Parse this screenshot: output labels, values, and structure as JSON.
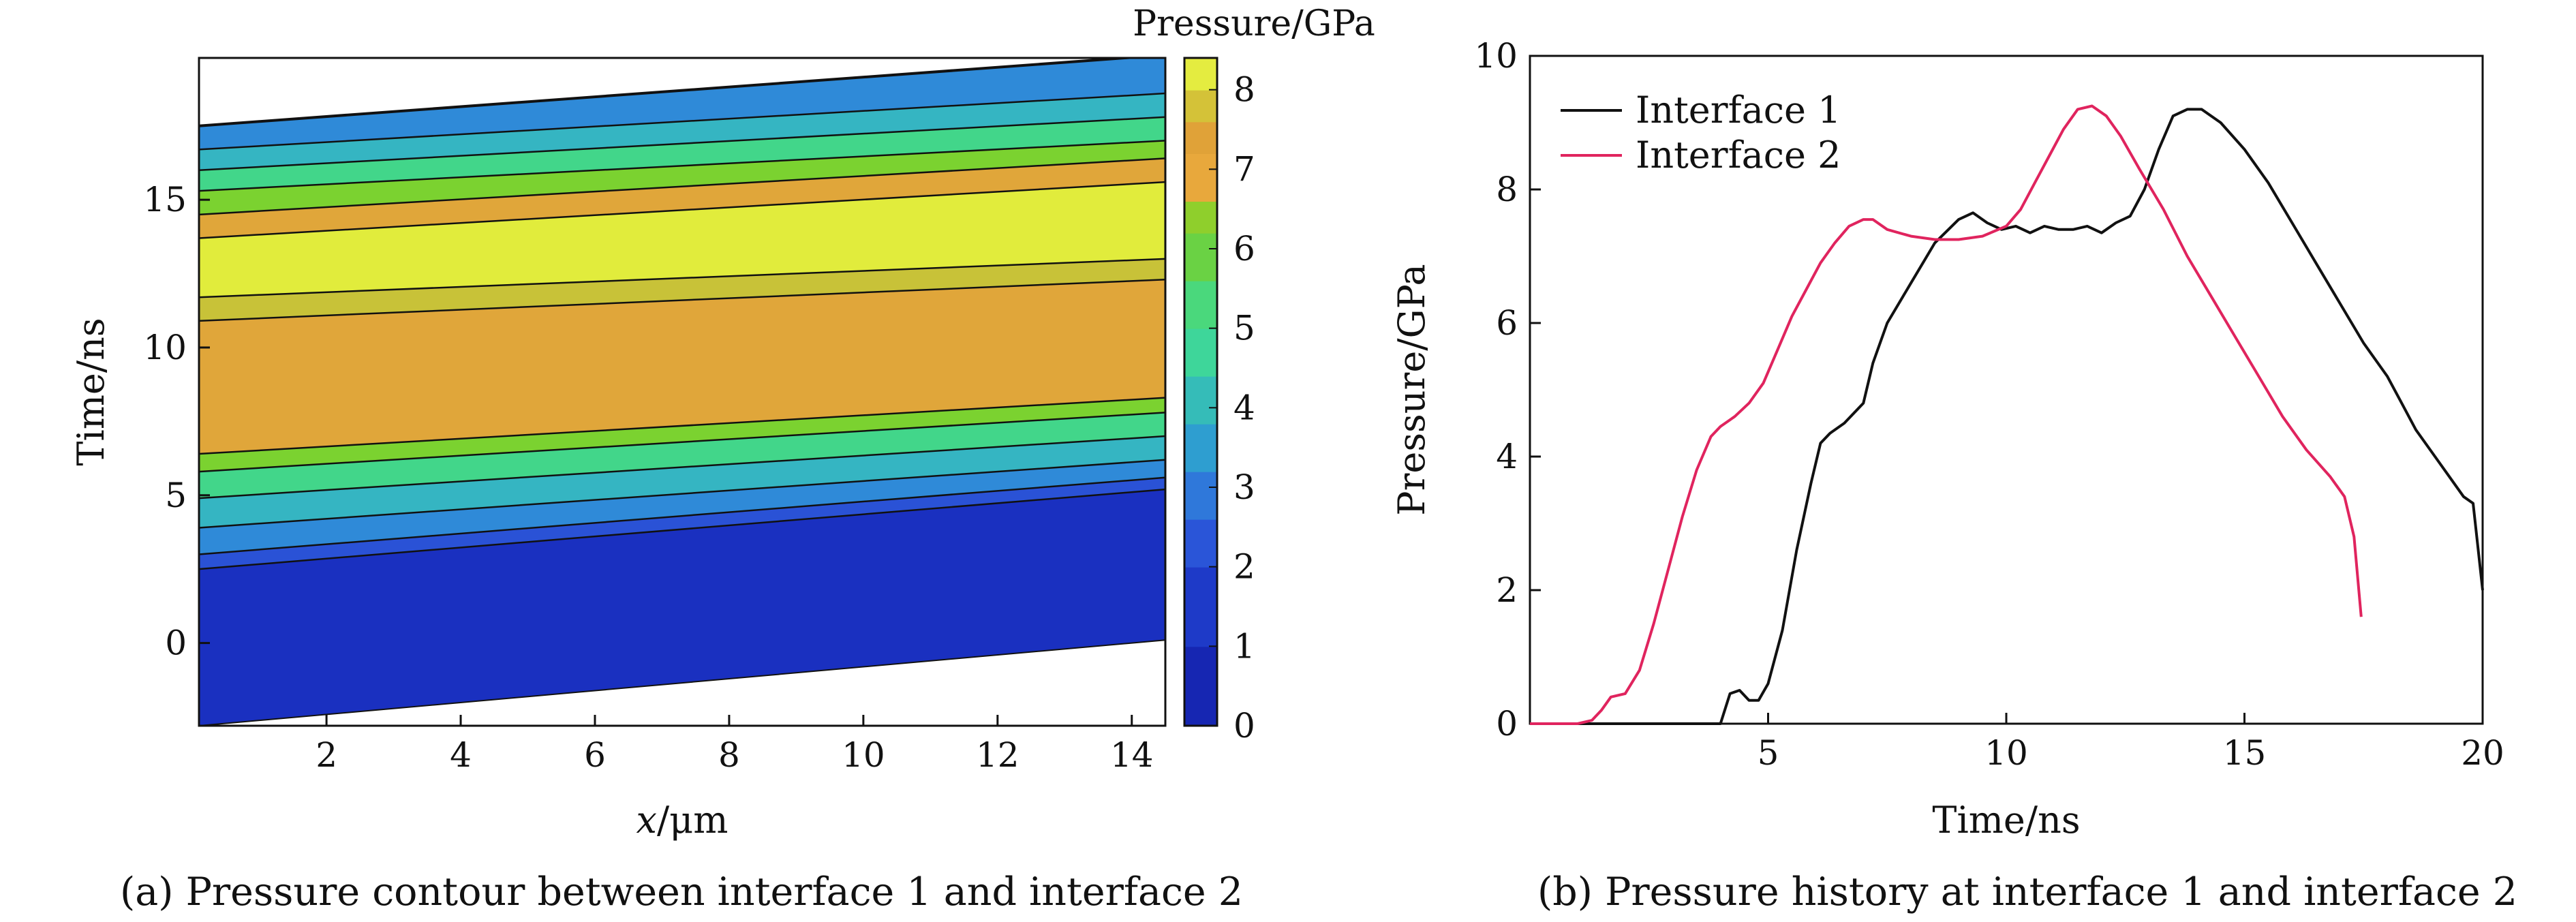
{
  "chart_data": [
    {
      "type": "contour",
      "caption": "(a) Pressure contour between interface 1 and interface 2",
      "xlabel_italic": "x",
      "xlabel_rest": "/μm",
      "ylabel": "Time/ns",
      "colorbar_title": "Pressure/GPa",
      "xlim": [
        0.1,
        14.5
      ],
      "ylim": [
        -2.8,
        19.8
      ],
      "xticks": [
        2,
        4,
        6,
        8,
        10,
        12,
        14
      ],
      "yticks": [
        0,
        5,
        10,
        15
      ],
      "colorbar_range": [
        0,
        8.4
      ],
      "colorbar_ticks": [
        0,
        1,
        2,
        3,
        4,
        5,
        6,
        7,
        8
      ],
      "domain_top_time": [
        17.5,
        19.9
      ],
      "domain_bottom_time": [
        -2.8,
        0.1
      ],
      "bands": [
        {
          "pressure": 0.3,
          "left": [
            -2.8,
            2.5
          ],
          "right": [
            0.1,
            5.2
          ],
          "color": "#1a30c0"
        },
        {
          "pressure": 1.5,
          "left": [
            2.5,
            3.0
          ],
          "right": [
            5.2,
            5.6
          ],
          "color": "#2a52d6"
        },
        {
          "pressure": 2.8,
          "left": [
            3.0,
            3.9
          ],
          "right": [
            5.6,
            6.2
          ],
          "color": "#2f8ad8"
        },
        {
          "pressure": 3.8,
          "left": [
            3.9,
            4.9
          ],
          "right": [
            6.2,
            7.0
          ],
          "color": "#35b5c2"
        },
        {
          "pressure": 4.6,
          "left": [
            4.9,
            5.8
          ],
          "right": [
            7.0,
            7.8
          ],
          "color": "#42d68a"
        },
        {
          "pressure": 6.2,
          "left": [
            5.8,
            6.4
          ],
          "right": [
            7.8,
            8.3
          ],
          "color": "#7bd230"
        },
        {
          "pressure": 6.9,
          "left": [
            6.4,
            10.9
          ],
          "right": [
            8.3,
            12.3
          ],
          "color": "#e0a63a"
        },
        {
          "pressure": 7.4,
          "left": [
            10.9,
            11.7
          ],
          "right": [
            12.3,
            13.0
          ],
          "color": "#c8c238"
        },
        {
          "pressure": 8.2,
          "left": [
            11.7,
            13.7
          ],
          "right": [
            13.0,
            15.6
          ],
          "color": "#e1ec3c"
        },
        {
          "pressure": 6.9,
          "left": [
            13.7,
            14.5
          ],
          "right": [
            15.6,
            16.4
          ],
          "color": "#e0a63a"
        },
        {
          "pressure": 5.8,
          "left": [
            14.5,
            15.3
          ],
          "right": [
            16.4,
            17.0
          ],
          "color": "#7bd230"
        },
        {
          "pressure": 4.6,
          "left": [
            15.3,
            16.0
          ],
          "right": [
            17.0,
            17.8
          ],
          "color": "#42d68a"
        },
        {
          "pressure": 3.6,
          "left": [
            16.0,
            16.7
          ],
          "right": [
            17.8,
            18.6
          ],
          "color": "#35b5c2"
        },
        {
          "pressure": 2.5,
          "left": [
            16.7,
            17.5
          ],
          "right": [
            18.6,
            19.9
          ],
          "color": "#2f8ad8"
        }
      ]
    },
    {
      "type": "line",
      "caption": "(b) Pressure history at interface 1 and interface 2",
      "xlabel": "Time/ns",
      "ylabel": "Pressure/GPa",
      "xlim": [
        0,
        20
      ],
      "ylim": [
        0,
        10
      ],
      "xticks": [
        5,
        10,
        15,
        20
      ],
      "yticks": [
        0,
        2,
        4,
        6,
        8,
        10
      ],
      "legend_position": "top-left",
      "series": [
        {
          "name": "Interface 1",
          "color": "#111111",
          "x": [
            0,
            4.0,
            4.2,
            4.4,
            4.6,
            4.8,
            5.0,
            5.3,
            5.6,
            5.9,
            6.1,
            6.3,
            6.6,
            7.0,
            7.2,
            7.5,
            8.0,
            8.5,
            9.0,
            9.3,
            9.6,
            9.9,
            10.2,
            10.5,
            10.8,
            11.1,
            11.4,
            11.7,
            12.0,
            12.3,
            12.6,
            12.9,
            13.2,
            13.5,
            13.8,
            14.1,
            14.5,
            15.0,
            15.5,
            16.0,
            16.5,
            17.0,
            17.5,
            18.0,
            18.3,
            18.6,
            19.0,
            19.3,
            19.6,
            19.8,
            20.0
          ],
          "y": [
            0,
            0,
            0.45,
            0.5,
            0.35,
            0.35,
            0.6,
            1.4,
            2.6,
            3.6,
            4.2,
            4.35,
            4.5,
            4.8,
            5.4,
            6.0,
            6.6,
            7.2,
            7.55,
            7.65,
            7.5,
            7.4,
            7.45,
            7.35,
            7.45,
            7.4,
            7.4,
            7.45,
            7.35,
            7.5,
            7.6,
            8.0,
            8.6,
            9.1,
            9.2,
            9.2,
            9.0,
            8.6,
            8.1,
            7.5,
            6.9,
            6.3,
            5.7,
            5.2,
            4.8,
            4.4,
            4.0,
            3.7,
            3.4,
            3.3,
            2.0
          ]
        },
        {
          "name": "Interface 2",
          "color": "#e0245e",
          "x": [
            0,
            1.0,
            1.3,
            1.5,
            1.7,
            2.0,
            2.3,
            2.6,
            2.9,
            3.2,
            3.5,
            3.8,
            4.0,
            4.3,
            4.6,
            4.9,
            5.2,
            5.5,
            5.8,
            6.1,
            6.4,
            6.7,
            7.0,
            7.2,
            7.5,
            8.0,
            8.5,
            9.0,
            9.5,
            10.0,
            10.3,
            10.6,
            10.9,
            11.2,
            11.5,
            11.8,
            12.1,
            12.4,
            12.8,
            13.3,
            13.8,
            14.3,
            14.8,
            15.3,
            15.8,
            16.3,
            16.8,
            17.1,
            17.3,
            17.45
          ],
          "y": [
            0,
            0,
            0.05,
            0.2,
            0.4,
            0.45,
            0.8,
            1.5,
            2.3,
            3.1,
            3.8,
            4.3,
            4.45,
            4.6,
            4.8,
            5.1,
            5.6,
            6.1,
            6.5,
            6.9,
            7.2,
            7.45,
            7.55,
            7.55,
            7.4,
            7.3,
            7.25,
            7.25,
            7.3,
            7.45,
            7.7,
            8.1,
            8.5,
            8.9,
            9.2,
            9.25,
            9.1,
            8.8,
            8.3,
            7.7,
            7.0,
            6.4,
            5.8,
            5.2,
            4.6,
            4.1,
            3.7,
            3.4,
            2.8,
            1.6
          ]
        }
      ]
    }
  ]
}
